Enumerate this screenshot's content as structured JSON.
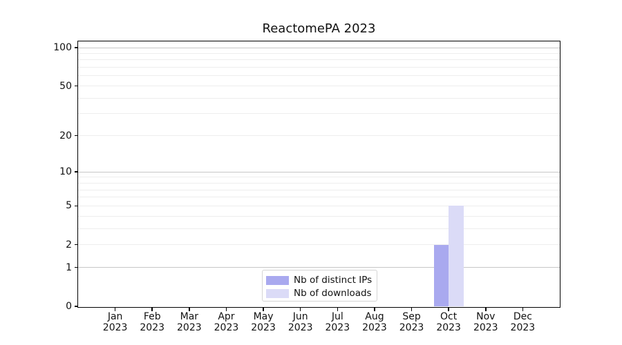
{
  "chart_data": {
    "type": "bar",
    "title": "ReactomePA 2023",
    "categories": [
      "Jan 2023",
      "Feb 2023",
      "Mar 2023",
      "Apr 2023",
      "May 2023",
      "Jun 2023",
      "Jul 2023",
      "Aug 2023",
      "Sep 2023",
      "Oct 2023",
      "Nov 2023",
      "Dec 2023"
    ],
    "series": [
      {
        "name": "Nb of distinct IPs",
        "color": "#a9a9ef",
        "values": [
          0,
          0,
          0,
          0,
          0,
          0,
          0,
          0,
          0,
          2,
          0,
          0
        ]
      },
      {
        "name": "Nb of downloads",
        "color": "#dbdbf7",
        "values": [
          0,
          0,
          0,
          0,
          0,
          0,
          0,
          0,
          0,
          5,
          0,
          0
        ]
      }
    ],
    "xlabel": "",
    "ylabel": "",
    "y_scale": "log1p",
    "ylim": [
      0,
      113
    ],
    "y_ticks": [
      0,
      1,
      2,
      5,
      10,
      20,
      50,
      100
    ],
    "y_major_gridlines": [
      1,
      10,
      100
    ],
    "y_minor_gridlines": [
      2,
      3,
      4,
      5,
      6,
      7,
      8,
      9,
      20,
      30,
      40,
      50,
      60,
      70,
      80,
      90
    ],
    "grid": true,
    "legend_position": "lower center",
    "colors": {
      "bar_distinct_ips": "#a9a9ef",
      "bar_downloads": "#dbdbf7",
      "major_gridline": "#c6c6c6",
      "minor_gridline": "#ededed",
      "axis_frame": "#000000",
      "text": "#111111",
      "legend_border": "#d4d4d4",
      "background": "#ffffff"
    }
  }
}
